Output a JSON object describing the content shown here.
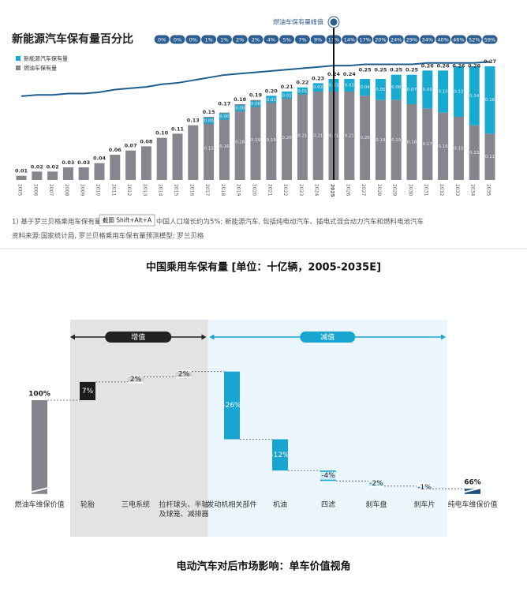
{
  "chart_data": [
    {
      "type": "bar",
      "stacked": true,
      "title": "新能源汽车保有量百分比",
      "categories": [
        "2005",
        "2006",
        "2007",
        "2008",
        "2009",
        "2010",
        "2011",
        "2012",
        "2013",
        "2014",
        "2015",
        "2016",
        "2017",
        "2018",
        "2019",
        "2020",
        "2021",
        "2022",
        "2023",
        "2024",
        "2025",
        "2026",
        "2027",
        "2028",
        "2029",
        "2030",
        "2031",
        "2032",
        "2033",
        "2034",
        "2035"
      ],
      "series": [
        {
          "name": "新能源汽车保有量",
          "color": "#19aacf",
          "values": [
            0,
            0,
            0,
            0,
            0,
            0,
            0,
            0,
            0,
            0,
            0,
            0,
            0,
            0,
            0,
            0,
            0.01,
            0.01,
            0.01,
            0.02,
            0.03,
            0.03,
            0.04,
            0.05,
            0.06,
            0.07,
            0.09,
            0.1,
            0.12,
            0.14,
            0.16
          ],
          "value_labels": [
            null,
            null,
            null,
            null,
            null,
            null,
            null,
            null,
            null,
            null,
            null,
            null,
            "0.00",
            "0.00",
            "0.00",
            "0.00",
            "0.01",
            "0.01",
            "0.01",
            "0.02",
            "0.03",
            "0.03",
            "0.04",
            "0.05",
            "0.06",
            "0.07",
            "0.09",
            "0.10",
            "0.12",
            "0.14",
            "0.16"
          ]
        },
        {
          "name": "燃油车保有量",
          "color": "#87868f",
          "values": [
            0.01,
            0.02,
            0.02,
            0.03,
            0.03,
            0.04,
            0.06,
            0.07,
            0.08,
            0.1,
            0.11,
            0.13,
            0.15,
            0.16,
            0.18,
            0.19,
            0.19,
            0.2,
            0.21,
            0.21,
            0.21,
            0.21,
            0.2,
            0.19,
            0.19,
            0.18,
            0.17,
            0.16,
            0.15,
            0.13,
            0.11
          ],
          "value_labels": [
            null,
            null,
            null,
            null,
            null,
            null,
            null,
            null,
            null,
            null,
            null,
            null,
            "0.15",
            "0.16",
            "0.18",
            "0.19",
            "0.19",
            "0.20",
            "0.21",
            "0.21",
            "0.21",
            "0.21",
            "0.20",
            "0.19",
            "0.19",
            "0.18",
            "0.17",
            "0.16",
            "0.15",
            "0.13",
            "0.11"
          ]
        }
      ],
      "totals": [
        0.01,
        0.02,
        0.02,
        0.03,
        0.03,
        0.04,
        0.06,
        0.07,
        0.08,
        0.1,
        0.11,
        0.13,
        0.15,
        0.17,
        0.18,
        0.19,
        0.2,
        0.21,
        0.22,
        0.23,
        0.24,
        0.24,
        0.25,
        0.25,
        0.25,
        0.25,
        0.26,
        0.26,
        0.26,
        0.26,
        0.27
      ],
      "total_labels": [
        "0.01",
        "0.02",
        "0.02",
        "0.03",
        "0.03",
        "0.04",
        "0.06",
        "0.07",
        "0.08",
        "0.10",
        "0.11",
        "0.13",
        "0.15",
        "0.17",
        "0.18",
        "0.19",
        "0.20",
        "0.21",
        "0.22",
        "0.23",
        "0.24",
        "0.24",
        "0.25",
        "0.25",
        "0.25",
        "0.25",
        "0.26",
        "0.26",
        "0.26",
        "0.26",
        "0.27"
      ],
      "line_color": "#1f5f8e",
      "ylim": [
        0,
        0.3
      ],
      "y2lim": [
        -0.62,
        0.33
      ],
      "share_values": [
        null,
        null,
        null,
        null,
        null,
        null,
        null,
        null,
        null,
        0,
        0,
        0,
        1,
        1,
        2,
        2,
        4,
        5,
        7,
        9,
        11,
        14,
        17,
        20,
        24,
        29,
        34,
        40,
        46,
        52,
        59
      ],
      "share_labels": [
        null,
        null,
        null,
        null,
        null,
        null,
        null,
        null,
        null,
        "0%",
        "0%",
        "0%",
        "1%",
        "1%",
        "2%",
        "2%",
        "4%",
        "5%",
        "7%",
        "9%",
        "11%",
        "14%",
        "17%",
        "20%",
        "24%",
        "29%",
        "34%",
        "40%",
        "46%",
        "52%",
        "59%"
      ],
      "share_color": "#2e5f90",
      "annotation": {
        "text": "燃油车保有量峰值",
        "category": "2025"
      },
      "footnote": [
        "1) 基于罗兰贝格乘用车保有量",
        "中国人口增长约为5%; 新能源汽车, 包括纯电动汽车、插电式混合动力汽车和燃料电池汽车"
      ],
      "tooltip": "截图 Shift+Alt+A",
      "source": "资料来源:国家统计局, 罗兰贝格乘用车保有量预测模型; 罗兰贝格",
      "caption": "中国乘用车保有量 [单位：十亿辆，2005-2035E]"
    },
    {
      "type": "waterfall",
      "categories": [
        "燃油车维保价值",
        "轮胎",
        "三电系统",
        "拉杆球头、半轴及球笼、减排器",
        "发动机相关部件",
        "机油",
        "四滤",
        "刹车盘",
        "刹车片",
        "纯电车维保价值"
      ],
      "measure": [
        "total",
        "relative",
        "relative",
        "relative",
        "relative",
        "relative",
        "relative",
        "relative",
        "relative",
        "total"
      ],
      "values": [
        100,
        7,
        2,
        2,
        -26,
        -12,
        -4,
        -2,
        -1,
        66
      ],
      "value_labels": [
        "100%",
        "7%",
        "2%",
        "2%",
        "-26%",
        "-12%",
        "-4%",
        "-2%",
        "-1%",
        "66%"
      ],
      "colors": [
        "#85858e",
        "#1c1c1c",
        "#1c1c1c",
        "#1c1c1c",
        "#18a6d0",
        "#18a6d0",
        "#18a6d0",
        "#18a6d0",
        "#18a6d0",
        "#1c4f7c"
      ],
      "ylim": [
        64,
        115
      ],
      "group_labels": [
        "增值",
        "减值"
      ],
      "caption": "电动汽车对后市场影响：单车价值视角"
    }
  ]
}
